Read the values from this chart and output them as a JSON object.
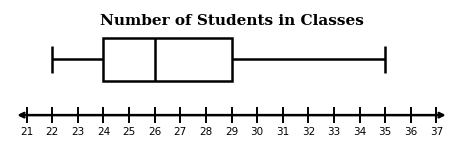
{
  "title": "Number of Students in Classes",
  "title_fontsize": 11,
  "title_fontweight": "bold",
  "title_font": "DejaVu Serif",
  "x_min": 21,
  "x_max": 37,
  "whisker_min": 22,
  "q1": 24,
  "median": 26,
  "q3": 29,
  "whisker_max": 35,
  "tick_labels": [
    21,
    22,
    23,
    24,
    25,
    26,
    27,
    28,
    29,
    30,
    31,
    32,
    33,
    34,
    35,
    36,
    37
  ],
  "background_color": "#ffffff",
  "box_color": "#ffffff",
  "line_color": "#000000",
  "linewidth": 1.8,
  "cap_linewidth": 1.8
}
